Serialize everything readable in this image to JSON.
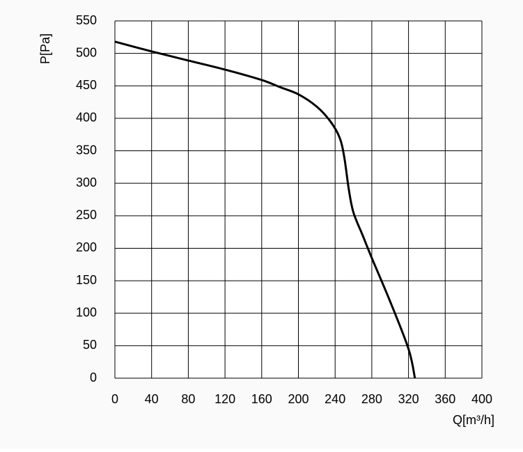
{
  "chart_data": {
    "type": "line",
    "x_label": "Q[m³/h]",
    "y_label": "P[Pa]",
    "series": [
      {
        "color": "#000000",
        "x": [
          0,
          40,
          80,
          120,
          160,
          180,
          200,
          220,
          235,
          245,
          250,
          255,
          260,
          270,
          280,
          300,
          320,
          327
        ],
        "values": [
          518,
          503,
          489,
          475,
          459,
          448,
          437,
          418,
          395,
          370,
          340,
          290,
          255,
          220,
          185,
          118,
          45,
          0
        ]
      }
    ],
    "xlim": [
      0,
      400
    ],
    "xticks": [
      0,
      40,
      80,
      120,
      160,
      200,
      240,
      280,
      320,
      360,
      400
    ],
    "ylim": [
      0,
      550
    ],
    "yticks": [
      0,
      50,
      100,
      150,
      200,
      250,
      300,
      350,
      400,
      450,
      500,
      550
    ],
    "grid": true
  }
}
